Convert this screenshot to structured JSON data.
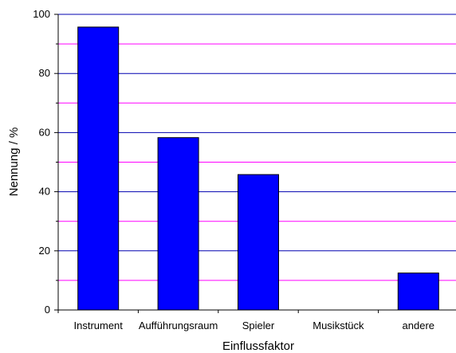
{
  "chart_data": {
    "type": "bar",
    "categories": [
      "Instrument",
      "Aufführungsraum",
      "Spieler",
      "Musikstück",
      "andere"
    ],
    "values": [
      95.7,
      58.3,
      45.8,
      0,
      12.5
    ],
    "xlabel": "Einflussfaktor",
    "ylabel": "Nennung / %",
    "ylim": [
      0,
      100
    ],
    "y_major_ticks": [
      0,
      20,
      40,
      60,
      80,
      100
    ],
    "y_minor_ticks": [
      10,
      30,
      50,
      70,
      90
    ],
    "grid": true,
    "colors": {
      "bar_fill": "#0000ff",
      "major_grid": "#0000b0",
      "minor_grid": "#ff00ff",
      "axis": "#000000"
    }
  }
}
